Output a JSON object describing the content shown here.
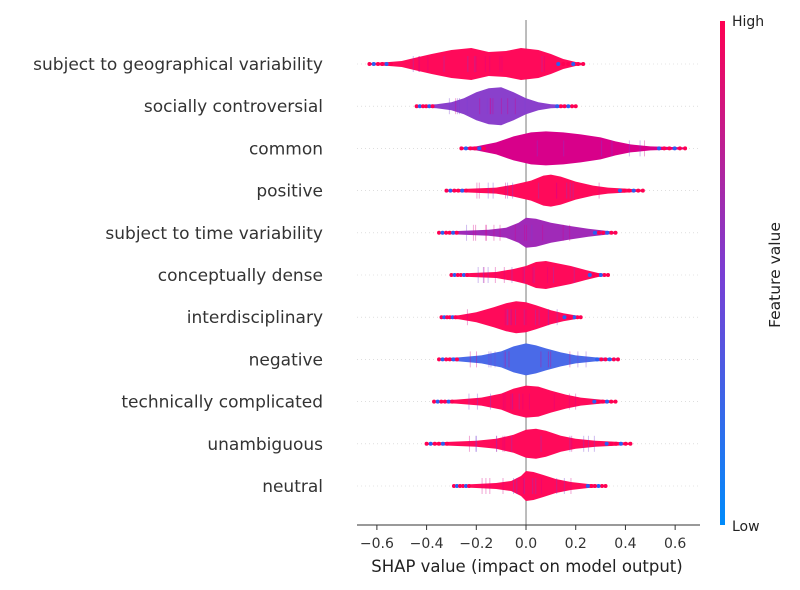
{
  "chart_data": {
    "type": "violin",
    "xlabel": "SHAP value (impact on model output)",
    "xlim": [
      -0.68,
      0.7
    ],
    "xticks": [
      -0.6,
      -0.4,
      -0.2,
      0.0,
      0.2,
      0.4,
      0.6
    ],
    "xtick_labels": [
      "−0.6",
      "−0.4",
      "−0.2",
      "0.0",
      "0.2",
      "0.4",
      "0.6"
    ],
    "colorbar": {
      "label": "Feature value",
      "high_label": "High",
      "low_label": "Low",
      "colors": [
        "#008bfb",
        "#7a3ed4",
        "#ff0052"
      ]
    },
    "features": [
      {
        "name": "subject to geographical variability",
        "min": -0.63,
        "max": 0.23,
        "color": "#ff0a5a",
        "profile": [
          [
            -0.63,
            1
          ],
          [
            -0.55,
            2
          ],
          [
            -0.5,
            3
          ],
          [
            -0.45,
            6
          ],
          [
            -0.38,
            10
          ],
          [
            -0.3,
            14
          ],
          [
            -0.22,
            16
          ],
          [
            -0.15,
            12
          ],
          [
            -0.08,
            13
          ],
          [
            -0.02,
            16
          ],
          [
            0.05,
            14
          ],
          [
            0.1,
            10
          ],
          [
            0.15,
            5
          ],
          [
            0.2,
            2
          ],
          [
            0.23,
            1
          ]
        ]
      },
      {
        "name": "socially controversial",
        "min": -0.44,
        "max": 0.2,
        "color": "#8a40cc",
        "profile": [
          [
            -0.44,
            1
          ],
          [
            -0.36,
            2
          ],
          [
            -0.3,
            4
          ],
          [
            -0.25,
            8
          ],
          [
            -0.2,
            14
          ],
          [
            -0.15,
            18
          ],
          [
            -0.1,
            19
          ],
          [
            -0.05,
            14
          ],
          [
            0.0,
            8
          ],
          [
            0.05,
            4
          ],
          [
            0.1,
            2
          ],
          [
            0.2,
            1
          ]
        ]
      },
      {
        "name": "common",
        "min": -0.26,
        "max": 0.64,
        "color": "#d8008a",
        "profile": [
          [
            -0.26,
            1
          ],
          [
            -0.2,
            2
          ],
          [
            -0.12,
            6
          ],
          [
            -0.05,
            12
          ],
          [
            0.02,
            16
          ],
          [
            0.08,
            17
          ],
          [
            0.15,
            16
          ],
          [
            0.22,
            14
          ],
          [
            0.3,
            11
          ],
          [
            0.36,
            7
          ],
          [
            0.42,
            4
          ],
          [
            0.5,
            2
          ],
          [
            0.64,
            1
          ]
        ]
      },
      {
        "name": "positive",
        "min": -0.32,
        "max": 0.47,
        "color": "#ff0a5a",
        "profile": [
          [
            -0.32,
            1
          ],
          [
            -0.22,
            2
          ],
          [
            -0.12,
            3
          ],
          [
            -0.05,
            6
          ],
          [
            0.02,
            10
          ],
          [
            0.07,
            15
          ],
          [
            0.1,
            16
          ],
          [
            0.14,
            14
          ],
          [
            0.2,
            9
          ],
          [
            0.27,
            5
          ],
          [
            0.33,
            3
          ],
          [
            0.4,
            2
          ],
          [
            0.47,
            1
          ]
        ]
      },
      {
        "name": "subject to time variability",
        "min": -0.35,
        "max": 0.36,
        "color": "#a02ab8",
        "profile": [
          [
            -0.35,
            1
          ],
          [
            -0.25,
            2
          ],
          [
            -0.15,
            3
          ],
          [
            -0.08,
            5
          ],
          [
            -0.03,
            10
          ],
          [
            0.0,
            15
          ],
          [
            0.04,
            14
          ],
          [
            0.1,
            10
          ],
          [
            0.17,
            7
          ],
          [
            0.25,
            4
          ],
          [
            0.32,
            2
          ],
          [
            0.36,
            1
          ]
        ]
      },
      {
        "name": "conceptually dense",
        "min": -0.3,
        "max": 0.33,
        "color": "#ff0a5a",
        "profile": [
          [
            -0.3,
            1
          ],
          [
            -0.22,
            2
          ],
          [
            -0.12,
            3
          ],
          [
            -0.05,
            6
          ],
          [
            0.0,
            9
          ],
          [
            0.04,
            13
          ],
          [
            0.08,
            14
          ],
          [
            0.12,
            12
          ],
          [
            0.18,
            9
          ],
          [
            0.24,
            5
          ],
          [
            0.29,
            2
          ],
          [
            0.33,
            1
          ]
        ]
      },
      {
        "name": "interdisciplinary",
        "min": -0.34,
        "max": 0.22,
        "color": "#ff0a5a",
        "profile": [
          [
            -0.34,
            1
          ],
          [
            -0.27,
            2
          ],
          [
            -0.2,
            5
          ],
          [
            -0.13,
            10
          ],
          [
            -0.08,
            14
          ],
          [
            -0.04,
            16
          ],
          [
            0.0,
            15
          ],
          [
            0.04,
            12
          ],
          [
            0.1,
            7
          ],
          [
            0.15,
            4
          ],
          [
            0.22,
            1
          ]
        ]
      },
      {
        "name": "negative",
        "min": -0.35,
        "max": 0.37,
        "color": "#4a6ae8",
        "profile": [
          [
            -0.35,
            1
          ],
          [
            -0.27,
            2
          ],
          [
            -0.18,
            4
          ],
          [
            -0.1,
            8
          ],
          [
            -0.05,
            13
          ],
          [
            0.0,
            16
          ],
          [
            0.04,
            14
          ],
          [
            0.08,
            11
          ],
          [
            0.14,
            7
          ],
          [
            0.2,
            4
          ],
          [
            0.28,
            2
          ],
          [
            0.37,
            1
          ]
        ]
      },
      {
        "name": "technically complicated",
        "min": -0.37,
        "max": 0.36,
        "color": "#ff0a5a",
        "profile": [
          [
            -0.37,
            1
          ],
          [
            -0.28,
            2
          ],
          [
            -0.18,
            4
          ],
          [
            -0.1,
            8
          ],
          [
            -0.05,
            13
          ],
          [
            0.0,
            16
          ],
          [
            0.05,
            15
          ],
          [
            0.1,
            11
          ],
          [
            0.16,
            7
          ],
          [
            0.22,
            4
          ],
          [
            0.3,
            2
          ],
          [
            0.36,
            1
          ]
        ]
      },
      {
        "name": "unambiguous",
        "min": -0.4,
        "max": 0.42,
        "color": "#ff0a5a",
        "profile": [
          [
            -0.4,
            1
          ],
          [
            -0.3,
            2
          ],
          [
            -0.2,
            3
          ],
          [
            -0.12,
            5
          ],
          [
            -0.05,
            9
          ],
          [
            0.0,
            14
          ],
          [
            0.04,
            15
          ],
          [
            0.08,
            13
          ],
          [
            0.14,
            8
          ],
          [
            0.2,
            5
          ],
          [
            0.28,
            3
          ],
          [
            0.36,
            2
          ],
          [
            0.42,
            1
          ]
        ]
      },
      {
        "name": "neutral",
        "min": -0.29,
        "max": 0.32,
        "color": "#ff0a5a",
        "profile": [
          [
            -0.29,
            1
          ],
          [
            -0.2,
            2
          ],
          [
            -0.12,
            3
          ],
          [
            -0.06,
            5
          ],
          [
            -0.02,
            10
          ],
          [
            0.0,
            15
          ],
          [
            0.03,
            14
          ],
          [
            0.07,
            11
          ],
          [
            0.12,
            7
          ],
          [
            0.18,
            4
          ],
          [
            0.25,
            2
          ],
          [
            0.32,
            1
          ]
        ]
      }
    ]
  }
}
